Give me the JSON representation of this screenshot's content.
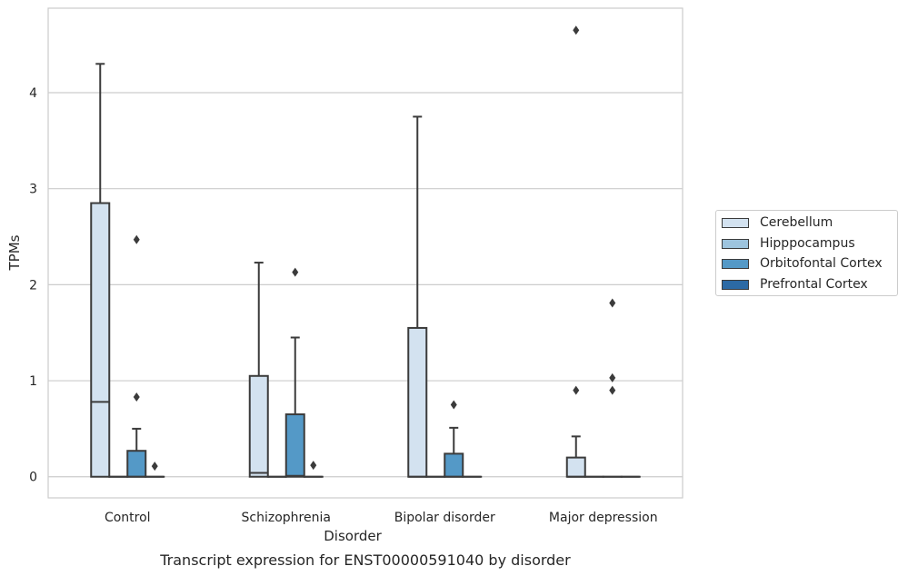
{
  "chart_data": {
    "type": "box",
    "caption": "Transcript expression for ENST00000591040 by disorder",
    "xlabel": "Disorder",
    "ylabel": "TPMs",
    "ylim": [
      -0.22,
      4.88
    ],
    "yticks": [
      0,
      1,
      2,
      3,
      4
    ],
    "grid": "horizontal",
    "legend_position": "right",
    "categories": [
      "Control",
      "Schizophrenia",
      "Bipolar disorder",
      "Major depression"
    ],
    "series": [
      {
        "name": "Cerebellum",
        "color": "#d3e2f0",
        "boxes": [
          {
            "q1": 0,
            "median": 0.78,
            "q3": 2.85,
            "whisker_low": 0,
            "whisker_high": 4.3,
            "outliers": []
          },
          {
            "q1": 0,
            "median": 0.04,
            "q3": 1.05,
            "whisker_low": 0,
            "whisker_high": 2.23,
            "outliers": []
          },
          {
            "q1": 0,
            "median": 0,
            "q3": 1.55,
            "whisker_low": 0,
            "whisker_high": 3.75,
            "outliers": []
          },
          {
            "q1": 0,
            "median": 0,
            "q3": 0.2,
            "whisker_low": 0,
            "whisker_high": 0.42,
            "outliers": [
              0.9,
              4.65
            ]
          }
        ]
      },
      {
        "name": "Hipppocampus",
        "color": "#9dc4de",
        "boxes": [
          {
            "q1": 0,
            "median": 0,
            "q3": 0,
            "whisker_low": 0,
            "whisker_high": 0,
            "outliers": []
          },
          {
            "q1": 0,
            "median": 0,
            "q3": 0,
            "whisker_low": 0,
            "whisker_high": 0,
            "outliers": []
          },
          {
            "q1": 0,
            "median": 0,
            "q3": 0,
            "whisker_low": 0,
            "whisker_high": 0,
            "outliers": []
          },
          {
            "q1": 0,
            "median": 0,
            "q3": 0,
            "whisker_low": 0,
            "whisker_high": 0,
            "outliers": []
          }
        ]
      },
      {
        "name": "Orbitofontal Cortex",
        "color": "#5499c7",
        "boxes": [
          {
            "q1": 0,
            "median": 0,
            "q3": 0.27,
            "whisker_low": 0,
            "whisker_high": 0.5,
            "outliers": [
              0.83,
              2.47
            ]
          },
          {
            "q1": 0,
            "median": 0.01,
            "q3": 0.65,
            "whisker_low": 0,
            "whisker_high": 1.45,
            "outliers": [
              2.13
            ]
          },
          {
            "q1": 0,
            "median": 0,
            "q3": 0.24,
            "whisker_low": 0,
            "whisker_high": 0.51,
            "outliers": [
              0.75
            ]
          },
          {
            "q1": 0,
            "median": 0,
            "q3": 0,
            "whisker_low": 0,
            "whisker_high": 0,
            "outliers": [
              0.9,
              1.03,
              1.81
            ]
          }
        ]
      },
      {
        "name": "Prefrontal Cortex",
        "color": "#2c6aa5",
        "boxes": [
          {
            "q1": 0,
            "median": 0,
            "q3": 0,
            "whisker_low": 0,
            "whisker_high": 0,
            "outliers": [
              0.11
            ]
          },
          {
            "q1": 0,
            "median": 0,
            "q3": 0,
            "whisker_low": 0,
            "whisker_high": 0,
            "outliers": [
              0.12
            ]
          },
          {
            "q1": 0,
            "median": 0,
            "q3": 0,
            "whisker_low": 0,
            "whisker_high": 0,
            "outliers": []
          },
          {
            "q1": 0,
            "median": 0,
            "q3": 0,
            "whisker_low": 0,
            "whisker_high": 0,
            "outliers": []
          }
        ]
      }
    ]
  }
}
